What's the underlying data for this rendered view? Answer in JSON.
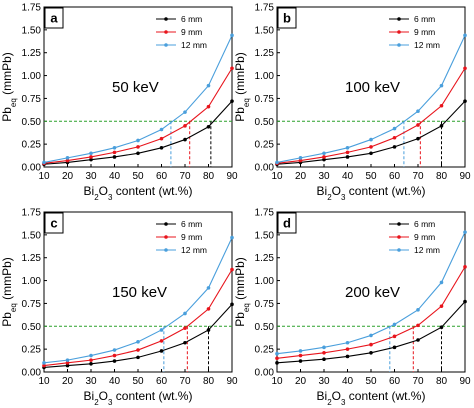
{
  "colors": {
    "6 mm": "#000000",
    "9 mm": "#e8141c",
    "12 mm": "#4a9fdc",
    "threshold": "#2ca02c"
  },
  "chart_data": [
    {
      "type": "line",
      "panel": "a",
      "annotation": "50 keV",
      "xlabel": "Bi2O3 content (wt.%)",
      "ylabel": "Pbeq (mmPb)",
      "xlim": [
        10,
        90
      ],
      "ylim": [
        0,
        1.75
      ],
      "grid": false,
      "legend": "top-right",
      "x": [
        10,
        20,
        30,
        40,
        50,
        60,
        70,
        80,
        90
      ],
      "xticks": [
        "10",
        "20",
        "30",
        "40",
        "50",
        "60",
        "70",
        "80",
        "90"
      ],
      "yticks": [
        "0.00",
        "0.25",
        "0.50",
        "0.75",
        "1.00",
        "1.25",
        "1.50",
        "1.75"
      ],
      "threshold": 0.5,
      "crossings": [
        64,
        72,
        81
      ],
      "series": [
        {
          "name": "6 mm",
          "values": [
            0.03,
            0.05,
            0.08,
            0.11,
            0.15,
            0.21,
            0.3,
            0.44,
            0.72
          ]
        },
        {
          "name": "9 mm",
          "values": [
            0.04,
            0.07,
            0.11,
            0.16,
            0.22,
            0.31,
            0.45,
            0.66,
            1.08
          ]
        },
        {
          "name": "12 mm",
          "values": [
            0.05,
            0.1,
            0.15,
            0.21,
            0.29,
            0.41,
            0.6,
            0.89,
            1.44
          ]
        }
      ]
    },
    {
      "type": "line",
      "panel": "b",
      "annotation": "100 keV",
      "xlabel": "Bi2O3 content (wt.%)",
      "ylabel": "Pbeq (mmPb)",
      "xlim": [
        10,
        90
      ],
      "ylim": [
        0,
        1.75
      ],
      "grid": false,
      "legend": "top-right",
      "x": [
        10,
        20,
        30,
        40,
        50,
        60,
        70,
        80,
        90
      ],
      "xticks": [
        "10",
        "20",
        "30",
        "40",
        "50",
        "60",
        "70",
        "80",
        "90"
      ],
      "yticks": [
        "0.00",
        "0.25",
        "0.50",
        "0.75",
        "1.00",
        "1.25",
        "1.50",
        "1.75"
      ],
      "threshold": 0.5,
      "crossings": [
        64,
        71,
        80
      ],
      "series": [
        {
          "name": "6 mm",
          "values": [
            0.03,
            0.05,
            0.08,
            0.11,
            0.15,
            0.22,
            0.31,
            0.45,
            0.72
          ]
        },
        {
          "name": "9 mm",
          "values": [
            0.04,
            0.07,
            0.11,
            0.16,
            0.22,
            0.32,
            0.46,
            0.67,
            1.08
          ]
        },
        {
          "name": "12 mm",
          "values": [
            0.05,
            0.1,
            0.15,
            0.21,
            0.3,
            0.42,
            0.61,
            0.89,
            1.44
          ]
        }
      ]
    },
    {
      "type": "line",
      "panel": "c",
      "annotation": "150 keV",
      "xlabel": "Bi2O3 content (wt.%)",
      "ylabel": "Pbeq (mmPb)",
      "xlim": [
        10,
        90
      ],
      "ylim": [
        0,
        1.75
      ],
      "grid": false,
      "legend": "top-right",
      "x": [
        10,
        20,
        30,
        40,
        50,
        60,
        70,
        80,
        90
      ],
      "xticks": [
        "10",
        "20",
        "30",
        "40",
        "50",
        "60",
        "70",
        "80",
        "90"
      ],
      "yticks": [
        "0.00",
        "0.25",
        "0.50",
        "0.75",
        "1.00",
        "1.25",
        "1.50",
        "1.75"
      ],
      "threshold": 0.5,
      "crossings": [
        61,
        71,
        80
      ],
      "series": [
        {
          "name": "6 mm",
          "values": [
            0.05,
            0.07,
            0.09,
            0.12,
            0.16,
            0.23,
            0.32,
            0.46,
            0.74
          ]
        },
        {
          "name": "9 mm",
          "values": [
            0.07,
            0.1,
            0.13,
            0.18,
            0.24,
            0.34,
            0.48,
            0.69,
            1.12
          ]
        },
        {
          "name": "12 mm",
          "values": [
            0.1,
            0.13,
            0.18,
            0.24,
            0.33,
            0.46,
            0.64,
            0.92,
            1.47
          ]
        }
      ]
    },
    {
      "type": "line",
      "panel": "d",
      "annotation": "200 keV",
      "xlabel": "Bi2O3 content (wt.%)",
      "ylabel": "Pbeq (mmPb)",
      "xlim": [
        10,
        90
      ],
      "ylim": [
        0,
        1.75
      ],
      "grid": false,
      "legend": "top-right",
      "x": [
        10,
        20,
        30,
        40,
        50,
        60,
        70,
        80,
        90
      ],
      "xticks": [
        "10",
        "20",
        "30",
        "40",
        "50",
        "60",
        "70",
        "80",
        "90"
      ],
      "yticks": [
        "0.00",
        "0.25",
        "0.50",
        "0.75",
        "1.00",
        "1.25",
        "1.50",
        "1.75"
      ],
      "threshold": 0.5,
      "crossings": [
        58,
        68,
        80
      ],
      "series": [
        {
          "name": "6 mm",
          "values": [
            0.1,
            0.12,
            0.14,
            0.17,
            0.21,
            0.27,
            0.35,
            0.49,
            0.77
          ]
        },
        {
          "name": "9 mm",
          "values": [
            0.15,
            0.18,
            0.21,
            0.25,
            0.3,
            0.39,
            0.51,
            0.72,
            1.15
          ]
        },
        {
          "name": "12 mm",
          "values": [
            0.2,
            0.23,
            0.27,
            0.32,
            0.4,
            0.52,
            0.68,
            0.98,
            1.53
          ]
        }
      ]
    }
  ]
}
